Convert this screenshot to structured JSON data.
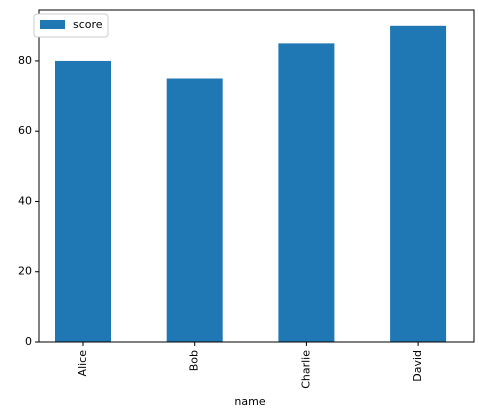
{
  "chart_data": {
    "type": "bar",
    "x_label": "name",
    "categories": [
      "Alice",
      "Bob",
      "Charlie",
      "David"
    ],
    "series": [
      {
        "name": "score",
        "color": "#1f77b4",
        "values": [
          80,
          75,
          85,
          90
        ]
      }
    ],
    "ylim": [
      0,
      94.5
    ],
    "yticks": [
      0,
      20,
      40,
      60,
      80
    ],
    "legend": "upper left"
  }
}
